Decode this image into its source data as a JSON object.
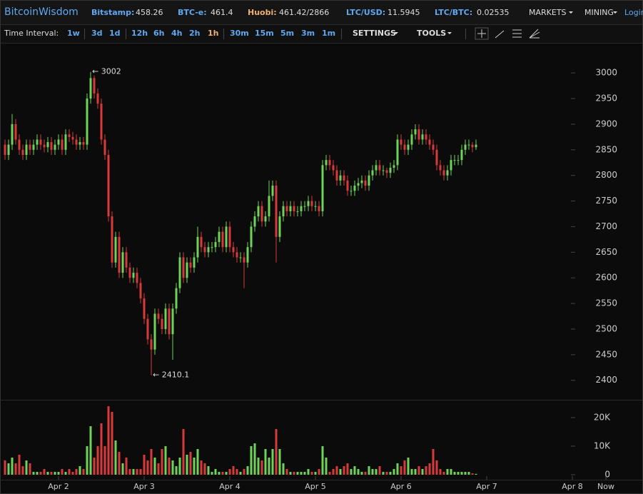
{
  "header": {
    "brand": "BitcoinWisdom",
    "tickers": [
      {
        "label": "Bitstamp:",
        "value": "458.26"
      },
      {
        "label": "BTC-e:",
        "value": "461.4"
      },
      {
        "label": "Huobi:",
        "value": "461.42/2866"
      },
      {
        "label": "LTC/USD:",
        "value": "11.5945"
      },
      {
        "label": "LTC/BTC:",
        "value": "0.02535"
      }
    ],
    "menu": [
      "MARKETS",
      "MINING"
    ],
    "login": "Login"
  },
  "toolbar": {
    "label": "Time Interval:",
    "intervals": [
      "1w",
      "3d",
      "1d",
      "12h",
      "6h",
      "4h",
      "2h",
      "1h",
      "30m",
      "15m",
      "5m",
      "3m",
      "1m"
    ],
    "selected": "1h",
    "menus": [
      "SETTINGS",
      "TOOLS"
    ]
  },
  "chart_data": {
    "type": "candlestick",
    "up_color": "#6fd35a",
    "down_color": "#d83a3a",
    "open": [
      2860,
      2840,
      2860,
      2900,
      2870,
      2850,
      2840,
      2860,
      2850,
      2860,
      2870,
      2860,
      2855,
      2865,
      2850,
      2860,
      2870,
      2850,
      2880,
      2875,
      2870,
      2860,
      2865,
      2860,
      2950,
      2990,
      2960,
      2940,
      2870,
      2840,
      2720,
      2630,
      2680,
      2610,
      2650,
      2620,
      2600,
      2610,
      2590,
      2560,
      2520,
      2480,
      2460,
      2530,
      2520,
      2500,
      2540,
      2490,
      2540,
      2580,
      2640,
      2600,
      2630,
      2620,
      2640,
      2680,
      2660,
      2650,
      2660,
      2660,
      2670,
      2690,
      2660,
      2700,
      2660,
      2650,
      2640,
      2640,
      2630,
      2660,
      2700,
      2720,
      2740,
      2710,
      2720,
      2760,
      2780,
      2680,
      2720,
      2740,
      2730,
      2740,
      2730,
      2730,
      2740,
      2740,
      2750,
      2740,
      2740,
      2730,
      2820,
      2830,
      2820,
      2810,
      2790,
      2800,
      2790,
      2770,
      2770,
      2780,
      2785,
      2790,
      2780,
      2800,
      2810,
      2820,
      2810,
      2810,
      2805,
      2815,
      2820,
      2870,
      2860,
      2850,
      2860,
      2880,
      2890,
      2870,
      2880,
      2870,
      2860,
      2850,
      2820,
      2810,
      2800,
      2810,
      2830,
      2830,
      2830,
      2850,
      2860,
      2860,
      2855
    ],
    "high": [
      2870,
      2870,
      2920,
      2910,
      2880,
      2860,
      2870,
      2870,
      2870,
      2880,
      2880,
      2870,
      2875,
      2875,
      2870,
      2880,
      2880,
      2890,
      2890,
      2885,
      2880,
      2875,
      2875,
      2960,
      3002,
      2995,
      2970,
      2950,
      2880,
      2850,
      2730,
      2690,
      2690,
      2660,
      2660,
      2630,
      2620,
      2620,
      2600,
      2570,
      2530,
      2490,
      2540,
      2540,
      2530,
      2550,
      2550,
      2550,
      2590,
      2650,
      2650,
      2640,
      2640,
      2650,
      2700,
      2690,
      2670,
      2670,
      2670,
      2680,
      2700,
      2700,
      2710,
      2710,
      2670,
      2660,
      2650,
      2650,
      2670,
      2710,
      2730,
      2750,
      2750,
      2730,
      2790,
      2790,
      2790,
      2730,
      2750,
      2750,
      2750,
      2750,
      2740,
      2750,
      2750,
      2760,
      2760,
      2750,
      2750,
      2830,
      2840,
      2840,
      2830,
      2820,
      2810,
      2810,
      2800,
      2780,
      2790,
      2795,
      2800,
      2800,
      2810,
      2820,
      2830,
      2830,
      2820,
      2815,
      2825,
      2830,
      2880,
      2880,
      2870,
      2870,
      2890,
      2900,
      2900,
      2890,
      2890,
      2880,
      2870,
      2860,
      2830,
      2820,
      2820,
      2840,
      2840,
      2840,
      2860,
      2870,
      2870,
      2865,
      2870
    ],
    "low": [
      2830,
      2830,
      2850,
      2860,
      2840,
      2830,
      2830,
      2840,
      2840,
      2850,
      2850,
      2845,
      2845,
      2840,
      2840,
      2850,
      2840,
      2840,
      2865,
      2860,
      2850,
      2850,
      2850,
      2850,
      2940,
      2950,
      2930,
      2860,
      2830,
      2710,
      2620,
      2620,
      2600,
      2600,
      2610,
      2590,
      2590,
      2580,
      2550,
      2510,
      2470,
      2410.1,
      2450,
      2510,
      2490,
      2490,
      2480,
      2440,
      2530,
      2570,
      2590,
      2590,
      2610,
      2610,
      2630,
      2650,
      2640,
      2640,
      2650,
      2650,
      2660,
      2650,
      2650,
      2650,
      2640,
      2630,
      2630,
      2580,
      2620,
      2650,
      2690,
      2710,
      2700,
      2700,
      2710,
      2750,
      2630,
      2670,
      2710,
      2720,
      2720,
      2720,
      2720,
      2720,
      2730,
      2730,
      2730,
      2730,
      2720,
      2720,
      2810,
      2810,
      2800,
      2780,
      2780,
      2780,
      2760,
      2760,
      2760,
      2770,
      2775,
      2770,
      2770,
      2790,
      2800,
      2800,
      2800,
      2795,
      2795,
      2805,
      2810,
      2850,
      2840,
      2840,
      2850,
      2870,
      2860,
      2860,
      2860,
      2850,
      2840,
      2810,
      2800,
      2790,
      2790,
      2800,
      2820,
      2820,
      2820,
      2840,
      2850,
      2845,
      2850
    ],
    "close": [
      2840,
      2860,
      2900,
      2870,
      2850,
      2840,
      2860,
      2850,
      2860,
      2870,
      2860,
      2855,
      2865,
      2850,
      2860,
      2870,
      2850,
      2880,
      2875,
      2870,
      2860,
      2865,
      2860,
      2950,
      2990,
      2960,
      2940,
      2870,
      2840,
      2720,
      2630,
      2680,
      2610,
      2650,
      2620,
      2600,
      2610,
      2590,
      2560,
      2520,
      2480,
      2460,
      2530,
      2520,
      2500,
      2540,
      2490,
      2540,
      2580,
      2640,
      2600,
      2630,
      2620,
      2640,
      2680,
      2660,
      2650,
      2660,
      2660,
      2670,
      2690,
      2660,
      2700,
      2660,
      2650,
      2640,
      2640,
      2630,
      2660,
      2700,
      2720,
      2740,
      2710,
      2720,
      2760,
      2780,
      2680,
      2720,
      2740,
      2730,
      2740,
      2730,
      2730,
      2740,
      2740,
      2750,
      2740,
      2740,
      2730,
      2820,
      2830,
      2820,
      2810,
      2790,
      2800,
      2790,
      2770,
      2770,
      2780,
      2785,
      2790,
      2780,
      2800,
      2810,
      2820,
      2810,
      2810,
      2805,
      2815,
      2820,
      2870,
      2860,
      2850,
      2860,
      2880,
      2890,
      2870,
      2880,
      2870,
      2860,
      2850,
      2820,
      2810,
      2800,
      2810,
      2830,
      2830,
      2830,
      2850,
      2860,
      2860,
      2855,
      2860
    ],
    "volume": [
      5000,
      4000,
      6000,
      4000,
      7000,
      3000,
      5000,
      4000,
      1000,
      1000,
      1000,
      2000,
      1000,
      1000,
      1000,
      1000,
      2000,
      1000,
      2000,
      1000,
      2000,
      3000,
      2000,
      10000,
      17000,
      6000,
      10000,
      18000,
      10000,
      24000,
      22000,
      12000,
      8000,
      4000,
      6000,
      2000,
      2000,
      2000,
      2000,
      7000,
      5000,
      9000,
      6000,
      4000,
      9000,
      10000,
      6000,
      5000,
      3000,
      6000,
      16000,
      7000,
      8000,
      6000,
      9000,
      5000,
      4000,
      3000,
      1000,
      2000,
      1000,
      1000,
      1000,
      2000,
      3000,
      2000,
      1000,
      2000,
      3000,
      10000,
      11000,
      6000,
      5000,
      9000,
      6000,
      9000,
      16000,
      9000,
      4000,
      2000,
      1000,
      1000,
      1000,
      1000,
      1000,
      2000,
      1000,
      1000,
      2000,
      10000,
      6000,
      1000,
      2000,
      3000,
      2000,
      3000,
      4000,
      2000,
      3000,
      2000,
      1000,
      1000,
      3000,
      2000,
      2000,
      3000,
      1000,
      1000,
      1000,
      2000,
      4000,
      3000,
      5000,
      6000,
      2000,
      2000,
      3000,
      2000,
      3000,
      4000,
      9000,
      5000,
      2000,
      1000,
      2000,
      2000,
      1000,
      1000,
      1000,
      1000,
      1000,
      500,
      300
    ],
    "ylim": [
      2362,
      3056
    ],
    "yticks": [
      2400,
      2450,
      2500,
      2550,
      2600,
      2650,
      2700,
      2750,
      2800,
      2850,
      2900,
      2950,
      3000
    ],
    "volume_ylim": [
      -1750,
      26250
    ],
    "volume_yticks": [
      {
        "value": 0,
        "label": "0"
      },
      {
        "value": 10000,
        "label": "10K"
      },
      {
        "value": 20000,
        "label": "20K"
      }
    ],
    "xlim": [
      -1.4,
      178.8
    ],
    "xticks": [
      {
        "value": 15,
        "label": "Apr 2"
      },
      {
        "value": 39,
        "label": "Apr 3"
      },
      {
        "value": 63,
        "label": "Apr 4"
      },
      {
        "value": 87,
        "label": "Apr 5"
      },
      {
        "value": 111,
        "label": "Apr 6"
      },
      {
        "value": 135,
        "label": "Apr 7"
      },
      {
        "value": 159,
        "label": "Apr 8"
      },
      {
        "value": 168.4,
        "label": "Now"
      }
    ],
    "annotations": {
      "max": "← 3002",
      "min": "← 2410.1"
    }
  }
}
